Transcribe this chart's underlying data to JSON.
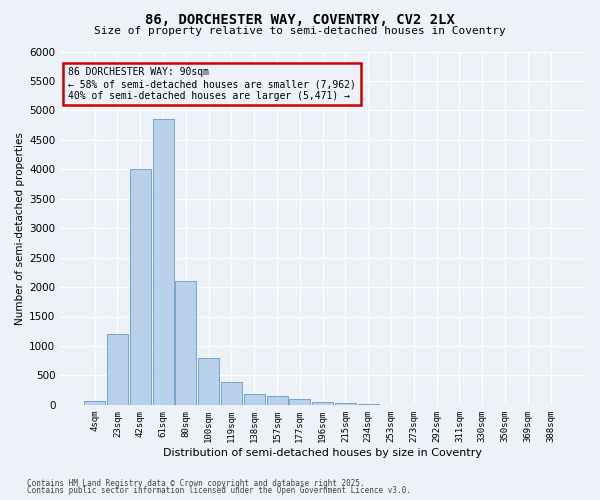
{
  "title_line1": "86, DORCHESTER WAY, COVENTRY, CV2 2LX",
  "title_line2": "Size of property relative to semi-detached houses in Coventry",
  "xlabel": "Distribution of semi-detached houses by size in Coventry",
  "ylabel": "Number of semi-detached properties",
  "bar_color": "#b8d0ea",
  "bar_edge_color": "#6699cc",
  "background_color": "#edf2f9",
  "grid_color": "#ffffff",
  "annotation_box_color": "#cc0000",
  "annotation_text_line1": "86 DORCHESTER WAY: 90sqm",
  "annotation_text_line2": "← 58% of semi-detached houses are smaller (7,962)",
  "annotation_text_line3": "40% of semi-detached houses are larger (5,471) →",
  "categories": [
    "4sqm",
    "23sqm",
    "42sqm",
    "61sqm",
    "80sqm",
    "100sqm",
    "119sqm",
    "138sqm",
    "157sqm",
    "177sqm",
    "196sqm",
    "215sqm",
    "234sqm",
    "253sqm",
    "273sqm",
    "292sqm",
    "311sqm",
    "330sqm",
    "350sqm",
    "369sqm",
    "388sqm"
  ],
  "values": [
    65,
    1200,
    4010,
    4850,
    2100,
    800,
    390,
    190,
    150,
    100,
    50,
    25,
    10,
    5,
    3,
    2,
    1,
    1,
    0,
    0,
    0
  ],
  "ylim": [
    0,
    6000
  ],
  "yticks": [
    0,
    500,
    1000,
    1500,
    2000,
    2500,
    3000,
    3500,
    4000,
    4500,
    5000,
    5500,
    6000
  ],
  "footer_line1": "Contains HM Land Registry data © Crown copyright and database right 2025.",
  "footer_line2": "Contains public sector information licensed under the Open Government Licence v3.0."
}
